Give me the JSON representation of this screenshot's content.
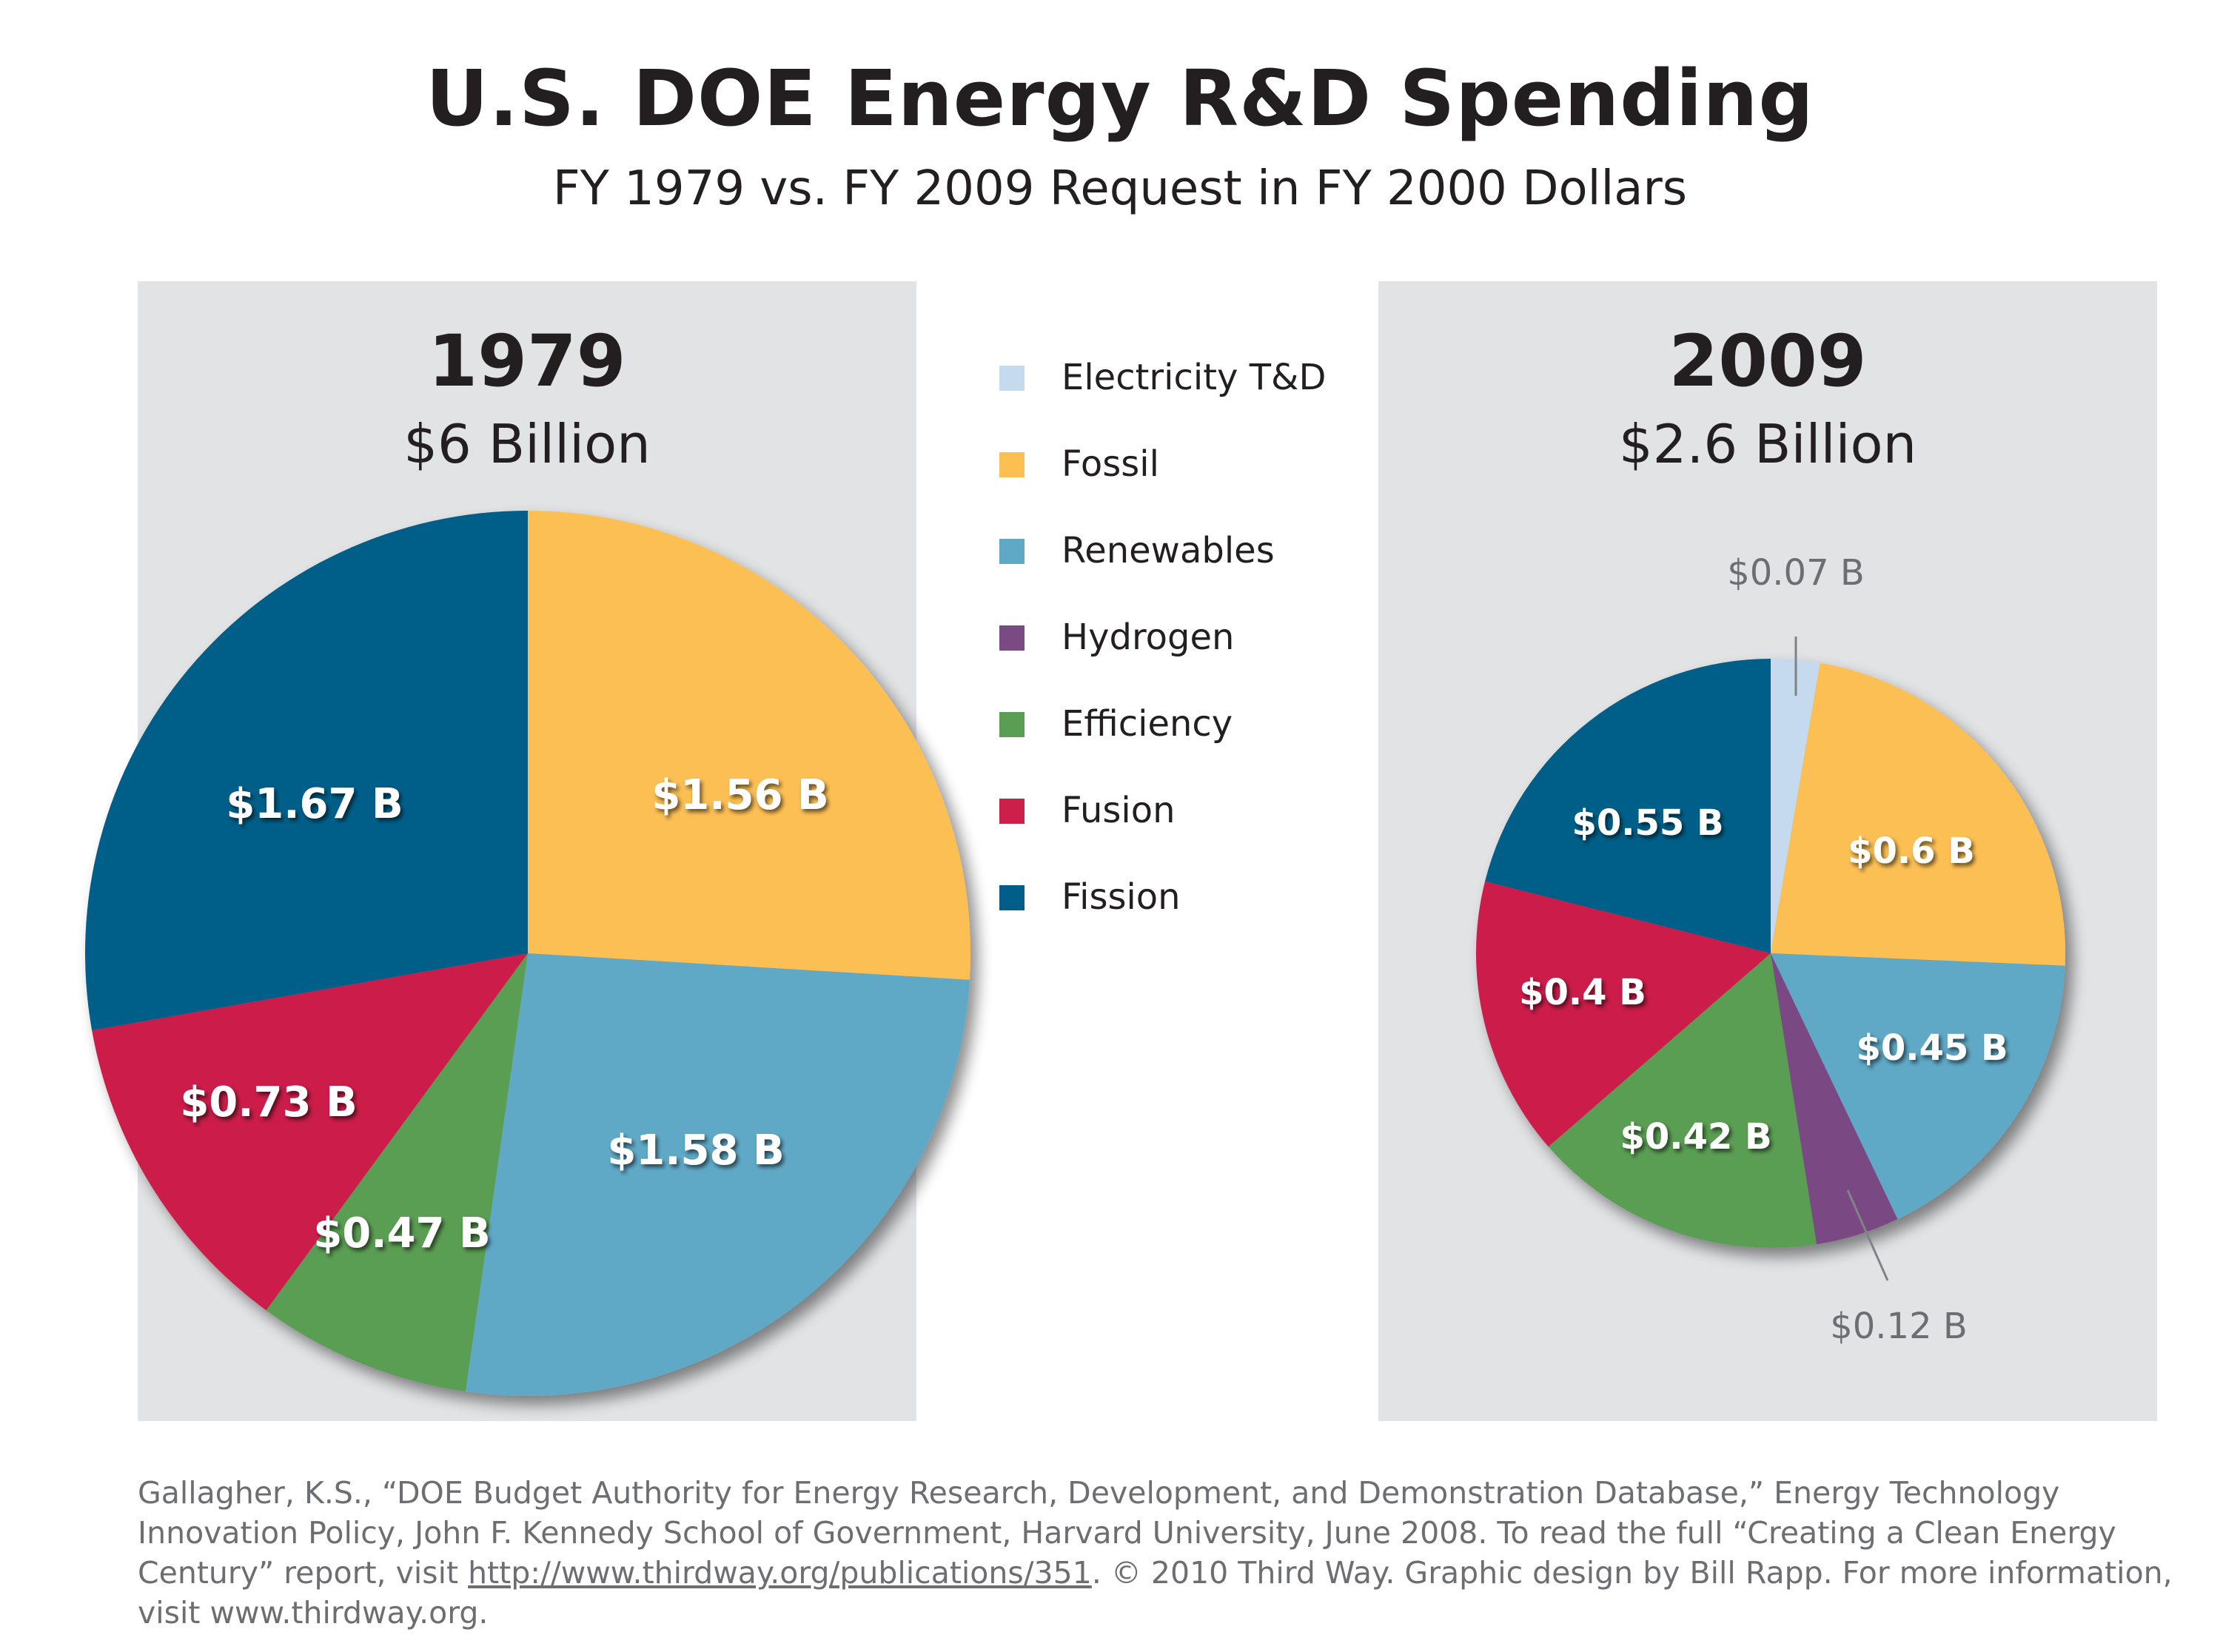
{
  "title": "U.S. DOE Energy R&D Spending",
  "subtitle": "FY 1979 vs. FY 2009 Request in FY 2000 Dollars",
  "legend": [
    {
      "label": "Electricity T&D",
      "color": "#c5d9ef"
    },
    {
      "label": "Fossil",
      "color": "#fcbf52"
    },
    {
      "label": "Renewables",
      "color": "#5fa9c7"
    },
    {
      "label": "Hydrogen",
      "color": "#7a4a83"
    },
    {
      "label": "Efficiency",
      "color": "#5a9e53"
    },
    {
      "label": "Fusion",
      "color": "#cc1f4a"
    },
    {
      "label": "Fission",
      "color": "#005e89"
    }
  ],
  "chart_data": [
    {
      "type": "pie",
      "title": "1979",
      "subtitle": "$6 Billion",
      "start": "12 o'clock",
      "direction": "clockwise",
      "slices": [
        {
          "category": "Fossil",
          "value": 1.56,
          "label": "$1.56 B",
          "color": "#fcbf52"
        },
        {
          "category": "Renewables",
          "value": 1.58,
          "label": "$1.58 B",
          "color": "#5fa9c7"
        },
        {
          "category": "Efficiency",
          "value": 0.47,
          "label": "$0.47 B",
          "color": "#5a9e53"
        },
        {
          "category": "Fusion",
          "value": 0.73,
          "label": "$0.73 B",
          "color": "#cc1f4a"
        },
        {
          "category": "Fission",
          "value": 1.67,
          "label": "$1.67 B",
          "color": "#005e89"
        }
      ]
    },
    {
      "type": "pie",
      "title": "2009",
      "subtitle": "$2.6 Billion",
      "start": "12 o'clock",
      "direction": "clockwise",
      "slices": [
        {
          "category": "Electricity T&D",
          "value": 0.07,
          "label": "$0.07 B",
          "color": "#c5d9ef"
        },
        {
          "category": "Fossil",
          "value": 0.6,
          "label": "$0.6 B",
          "color": "#fcbf52"
        },
        {
          "category": "Renewables",
          "value": 0.45,
          "label": "$0.45 B",
          "color": "#5fa9c7"
        },
        {
          "category": "Hydrogen",
          "value": 0.12,
          "label": "$0.12 B",
          "color": "#7a4a83"
        },
        {
          "category": "Efficiency",
          "value": 0.42,
          "label": "$0.42 B",
          "color": "#5a9e53"
        },
        {
          "category": "Fusion",
          "value": 0.4,
          "label": "$0.4 B",
          "color": "#cc1f4a"
        },
        {
          "category": "Fission",
          "value": 0.55,
          "label": "$0.55 B",
          "color": "#005e89"
        }
      ]
    }
  ],
  "footer": {
    "text_before_link": "Gallagher, K.S., “DOE Budget Authority for Energy Research, Development, and Demonstration Database,” Energy Technology Innovation Policy, John F. Kennedy School of Government, Harvard University, June 2008. To read the full “Creating a Clean Energy Century” report, visit ",
    "link": "http://www.thirdway.org/publications/351",
    "text_after_link": ". © 2010 Third Way. Graphic design by Bill Rapp. For more information, visit www.thirdway.org."
  }
}
